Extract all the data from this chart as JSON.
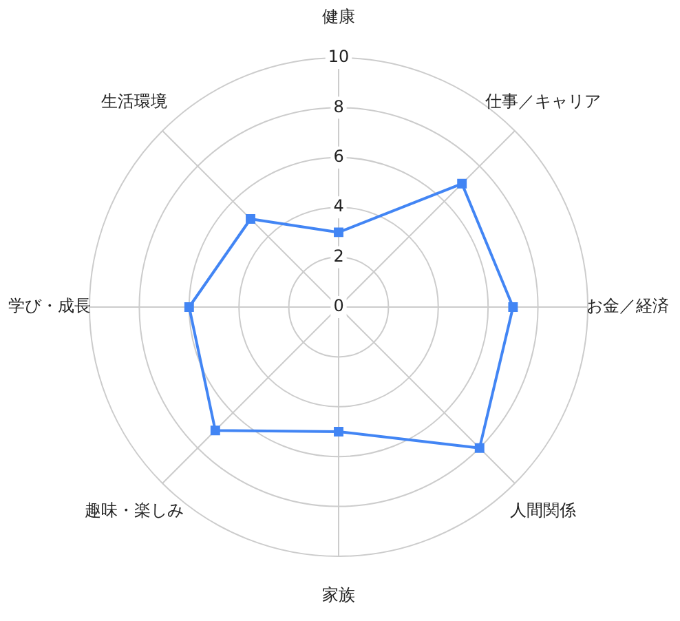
{
  "chart_data": {
    "type": "radar",
    "categories": [
      "健康",
      "仕事／キャリア",
      "お金／経済",
      "人間関係",
      "家族",
      "趣味・楽しみ",
      "学び・成長",
      "生活環境"
    ],
    "series": [
      {
        "color": "#4285f4",
        "values": [
          3,
          7,
          7,
          8,
          5,
          7,
          6,
          5
        ]
      }
    ],
    "ylim": [
      0,
      10
    ],
    "yticks": [
      0,
      2,
      4,
      6,
      8,
      10
    ],
    "grid": true,
    "marker": "square",
    "line_style": "solid"
  }
}
